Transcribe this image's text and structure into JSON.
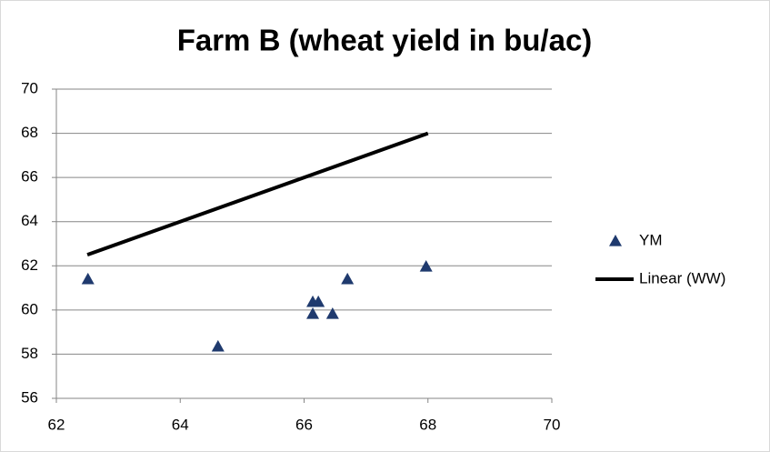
{
  "chart_data": {
    "type": "scatter",
    "title": "Farm B (wheat yield in bu/ac)",
    "series": [
      {
        "name": "YM",
        "color": "#1f3a6e",
        "mode": "markers",
        "marker": "triangle",
        "x": [
          62.51,
          64.61,
          66.14,
          66.23,
          66.14,
          66.46,
          66.7,
          67.97
        ],
        "values": [
          61.4,
          58.35,
          60.37,
          60.37,
          59.83,
          59.83,
          61.4,
          61.97
        ]
      },
      {
        "name": "Linear (WW)",
        "color": "#000000",
        "mode": "line",
        "x": [
          62.5,
          68
        ],
        "values": [
          62.5,
          68
        ]
      }
    ],
    "xlim": [
      62,
      70
    ],
    "xticks": [
      62,
      64,
      66,
      68,
      70
    ],
    "ylim": [
      56,
      70
    ],
    "yticks": [
      56,
      58,
      60,
      62,
      64,
      66,
      68,
      70
    ],
    "grid": true,
    "legend": "right"
  }
}
